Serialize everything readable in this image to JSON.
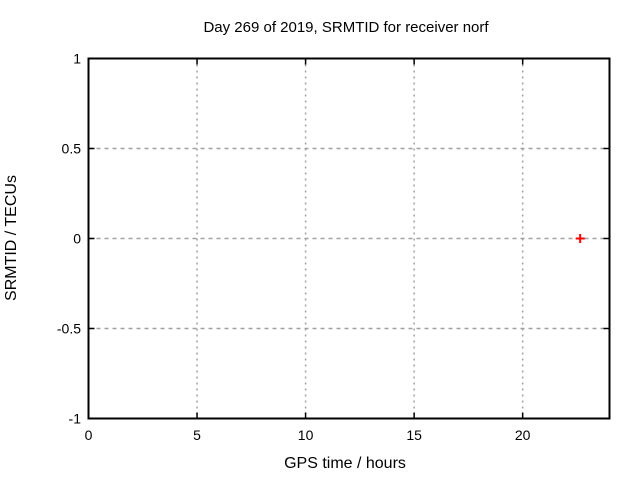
{
  "window": {
    "background": "#ffffff"
  },
  "chart_data": {
    "type": "scatter",
    "title": "Day 269 of 2019, SRMTID for receiver norf",
    "xlabel": "GPS time / hours",
    "ylabel": "SRMTID / TECUs",
    "xlim": [
      0,
      24
    ],
    "ylim": [
      -1,
      1
    ],
    "xticks": [
      0,
      5,
      10,
      15,
      20
    ],
    "yticks": [
      -1,
      -0.5,
      0,
      0.5,
      1
    ],
    "grid": true,
    "legend": "none",
    "tick_style": "inward-mirrored",
    "series": [
      {
        "name": "SRMTID",
        "marker": "plus",
        "color": "#ff0000",
        "points": [
          {
            "x": 22.65,
            "y": 0.0
          }
        ]
      }
    ],
    "colors": {
      "background": "#ffffff",
      "border": "#000000",
      "grid": "#a0a0a0",
      "text": "#000000"
    }
  }
}
